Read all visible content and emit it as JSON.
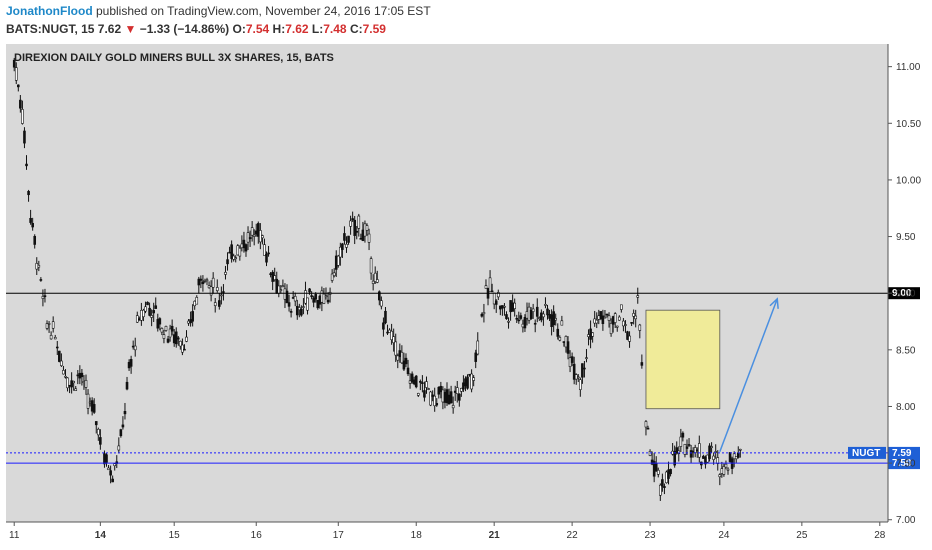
{
  "header": {
    "author": "JonathonFlood",
    "published": " published on TradingView.com, November 24, 2016 17:05 EST",
    "symbol": "BATS:NUGT, 15",
    "last": "7.62",
    "down_arrow": "▼",
    "change": "−1.33 (−14.86%)",
    "o_label": "O:",
    "o_val": "7.54",
    "h_label": "H:",
    "h_val": "7.62",
    "l_label": "L:",
    "l_val": "7.48",
    "c_label": "C:",
    "c_val": "7.59"
  },
  "colors": {
    "background": "#d9d9d9",
    "candle": "#111111",
    "support_line": "#1a1aff",
    "resistance_line": "#000000",
    "box_fill": "#f0eb99",
    "arrow": "#4a8fe0",
    "tag_blue": "#1e5fd6"
  },
  "chart_data": {
    "type": "candlestick",
    "title": "DIREXION DAILY GOLD MINERS BULL 3X SHARES, 15, BATS",
    "ylim": [
      6.98,
      11.2
    ],
    "y_ticks": [
      "7.00",
      "7.50",
      "8.00",
      "8.50",
      "9.00",
      "9.50",
      "10.00",
      "10.50",
      "11.00"
    ],
    "x_tick_labels": [
      "11",
      "14",
      "15",
      "16",
      "17",
      "18",
      "21",
      "22",
      "23",
      "24",
      "25",
      "28"
    ],
    "bold_x_ticks": [
      "14",
      "21"
    ],
    "price_path": [
      [
        0,
        11.05
      ],
      [
        1,
        10.6
      ],
      [
        2,
        9.7
      ],
      [
        3,
        9.2
      ],
      [
        4,
        8.75
      ],
      [
        5,
        8.6
      ],
      [
        6,
        8.35
      ],
      [
        7,
        8.2
      ],
      [
        8,
        8.3
      ],
      [
        9,
        8.05
      ],
      [
        10,
        7.9
      ],
      [
        11,
        7.55
      ],
      [
        12,
        7.42
      ],
      [
        13,
        7.7
      ],
      [
        14,
        8.3
      ],
      [
        15,
        8.7
      ],
      [
        16,
        8.9
      ],
      [
        17,
        8.85
      ],
      [
        18,
        8.7
      ],
      [
        19,
        8.65
      ],
      [
        20,
        8.6
      ],
      [
        21,
        8.55
      ],
      [
        22,
        8.9
      ],
      [
        23,
        9.2
      ],
      [
        24,
        9.05
      ],
      [
        25,
        8.95
      ],
      [
        26,
        9.25
      ],
      [
        27,
        9.4
      ],
      [
        28,
        9.45
      ],
      [
        29,
        9.5
      ],
      [
        30,
        9.55
      ],
      [
        31,
        9.3
      ],
      [
        32,
        9.1
      ],
      [
        33,
        8.95
      ],
      [
        34,
        8.9
      ],
      [
        35,
        8.85
      ],
      [
        36,
        9.0
      ],
      [
        37,
        8.95
      ],
      [
        38,
        8.9
      ],
      [
        39,
        9.2
      ],
      [
        40,
        9.4
      ],
      [
        41,
        9.55
      ],
      [
        42,
        9.6
      ],
      [
        43,
        9.5
      ],
      [
        44,
        9.1
      ],
      [
        45,
        8.8
      ],
      [
        46,
        8.6
      ],
      [
        47,
        8.45
      ],
      [
        48,
        8.3
      ],
      [
        49,
        8.2
      ],
      [
        50,
        8.15
      ],
      [
        51,
        8.1
      ],
      [
        52,
        8.08
      ],
      [
        53,
        8.05
      ],
      [
        54,
        8.1
      ],
      [
        55,
        8.2
      ],
      [
        56,
        8.3
      ],
      [
        57,
        8.85
      ],
      [
        58,
        9.05
      ],
      [
        59,
        8.95
      ],
      [
        60,
        8.8
      ],
      [
        61,
        8.9
      ],
      [
        62,
        8.75
      ],
      [
        63,
        8.85
      ],
      [
        64,
        8.8
      ],
      [
        65,
        8.85
      ],
      [
        66,
        8.75
      ],
      [
        67,
        8.6
      ],
      [
        68,
        8.4
      ],
      [
        69,
        8.25
      ],
      [
        70,
        8.6
      ],
      [
        71,
        8.75
      ],
      [
        72,
        8.8
      ],
      [
        73,
        8.7
      ],
      [
        74,
        8.8
      ],
      [
        75,
        8.6
      ],
      [
        76,
        8.95
      ],
      [
        77,
        7.8
      ],
      [
        78,
        7.45
      ],
      [
        79,
        7.25
      ],
      [
        80,
        7.5
      ],
      [
        81,
        7.6
      ],
      [
        82,
        7.7
      ],
      [
        83,
        7.62
      ],
      [
        84,
        7.55
      ],
      [
        85,
        7.6
      ],
      [
        86,
        7.45
      ],
      [
        87,
        7.5
      ],
      [
        88,
        7.59
      ]
    ],
    "horizontal_lines": [
      {
        "value": 9.0,
        "label": "9.00",
        "style": "solid",
        "color": "#000000"
      },
      {
        "value": 7.5,
        "label": "7.50",
        "style": "solid",
        "color": "#1a1aff"
      },
      {
        "value": 7.59,
        "label": "7.59",
        "style": "dotted",
        "color": "#1a1aff",
        "symbol_tag": "NUGT"
      }
    ],
    "target_box": {
      "x": [
        77,
        86
      ],
      "y": [
        7.98,
        8.85
      ]
    },
    "projection_arrow": {
      "from": [
        86,
        7.6
      ],
      "to": [
        93,
        8.95
      ]
    },
    "x_tick_positions": [
      0,
      10.5,
      19.5,
      29.5,
      39.5,
      49,
      58.5,
      68,
      77.5,
      86.5,
      96,
      105.5
    ],
    "x_range": [
      -1,
      106.5
    ]
  }
}
